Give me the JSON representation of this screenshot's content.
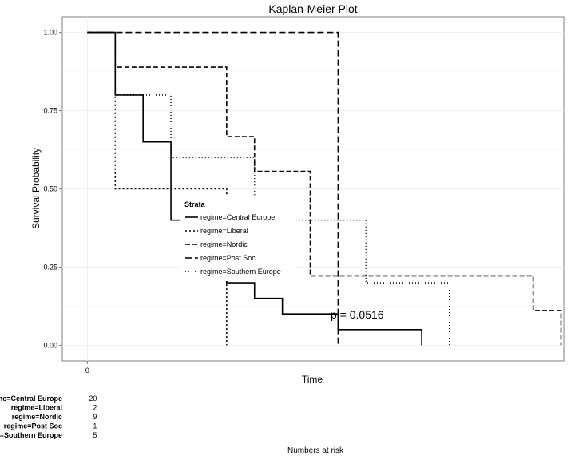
{
  "chart_data": {
    "type": "line",
    "title": "Kaplan-Meier Plot",
    "xlabel": "Time",
    "ylabel": "Survival Probability",
    "xlim": [
      -0.9,
      17.1
    ],
    "ylim": [
      -0.05,
      1.05
    ],
    "x_ticks": [
      "0"
    ],
    "y_ticks": [
      "0.00",
      "0.25",
      "0.50",
      "0.75",
      "1.00"
    ],
    "grid": true,
    "legend": {
      "title": "Strata",
      "placement": "center",
      "entries": [
        "regime=Central Europe",
        "regime=Liberal",
        "regime=Nordic",
        "regime=Post Soc",
        "regime=Southern Europe"
      ]
    },
    "annotation": "p = 0.0516",
    "series": [
      {
        "name": "regime=Central Europe",
        "dash": "solid",
        "x": [
          0,
          1,
          2,
          3,
          5,
          6,
          7,
          9,
          12
        ],
        "y": [
          1.0,
          0.8,
          0.65,
          0.4,
          0.2,
          0.15,
          0.1,
          0.05,
          0.0
        ]
      },
      {
        "name": "regime=Liberal",
        "dash": "dashed-short",
        "x": [
          0,
          1,
          5
        ],
        "y": [
          1.0,
          0.5,
          0.0
        ]
      },
      {
        "name": "regime=Nordic",
        "dash": "dashed",
        "x": [
          0,
          1,
          5,
          6,
          8,
          16,
          17
        ],
        "y": [
          1.0,
          0.889,
          0.667,
          0.556,
          0.222,
          0.111,
          0.0
        ]
      },
      {
        "name": "regime=Post Soc",
        "dash": "longdash",
        "x": [
          0,
          9
        ],
        "y": [
          1.0,
          0.0
        ]
      },
      {
        "name": "regime=Southern Europe",
        "dash": "dotted",
        "x": [
          0,
          1,
          3,
          6,
          10,
          13
        ],
        "y": [
          1.0,
          0.8,
          0.6,
          0.4,
          0.2,
          0.0
        ]
      }
    ],
    "risk_table": {
      "title": "Numbers at risk",
      "time": "0",
      "rows": [
        {
          "label": "regime=Central Europe",
          "value": "20"
        },
        {
          "label": "regime=Liberal",
          "value": "2"
        },
        {
          "label": "regime=Nordic",
          "value": "9"
        },
        {
          "label": "regime=Post Soc",
          "value": "1"
        },
        {
          "label": "regime=Southern Europe",
          "value": "5"
        }
      ]
    }
  }
}
